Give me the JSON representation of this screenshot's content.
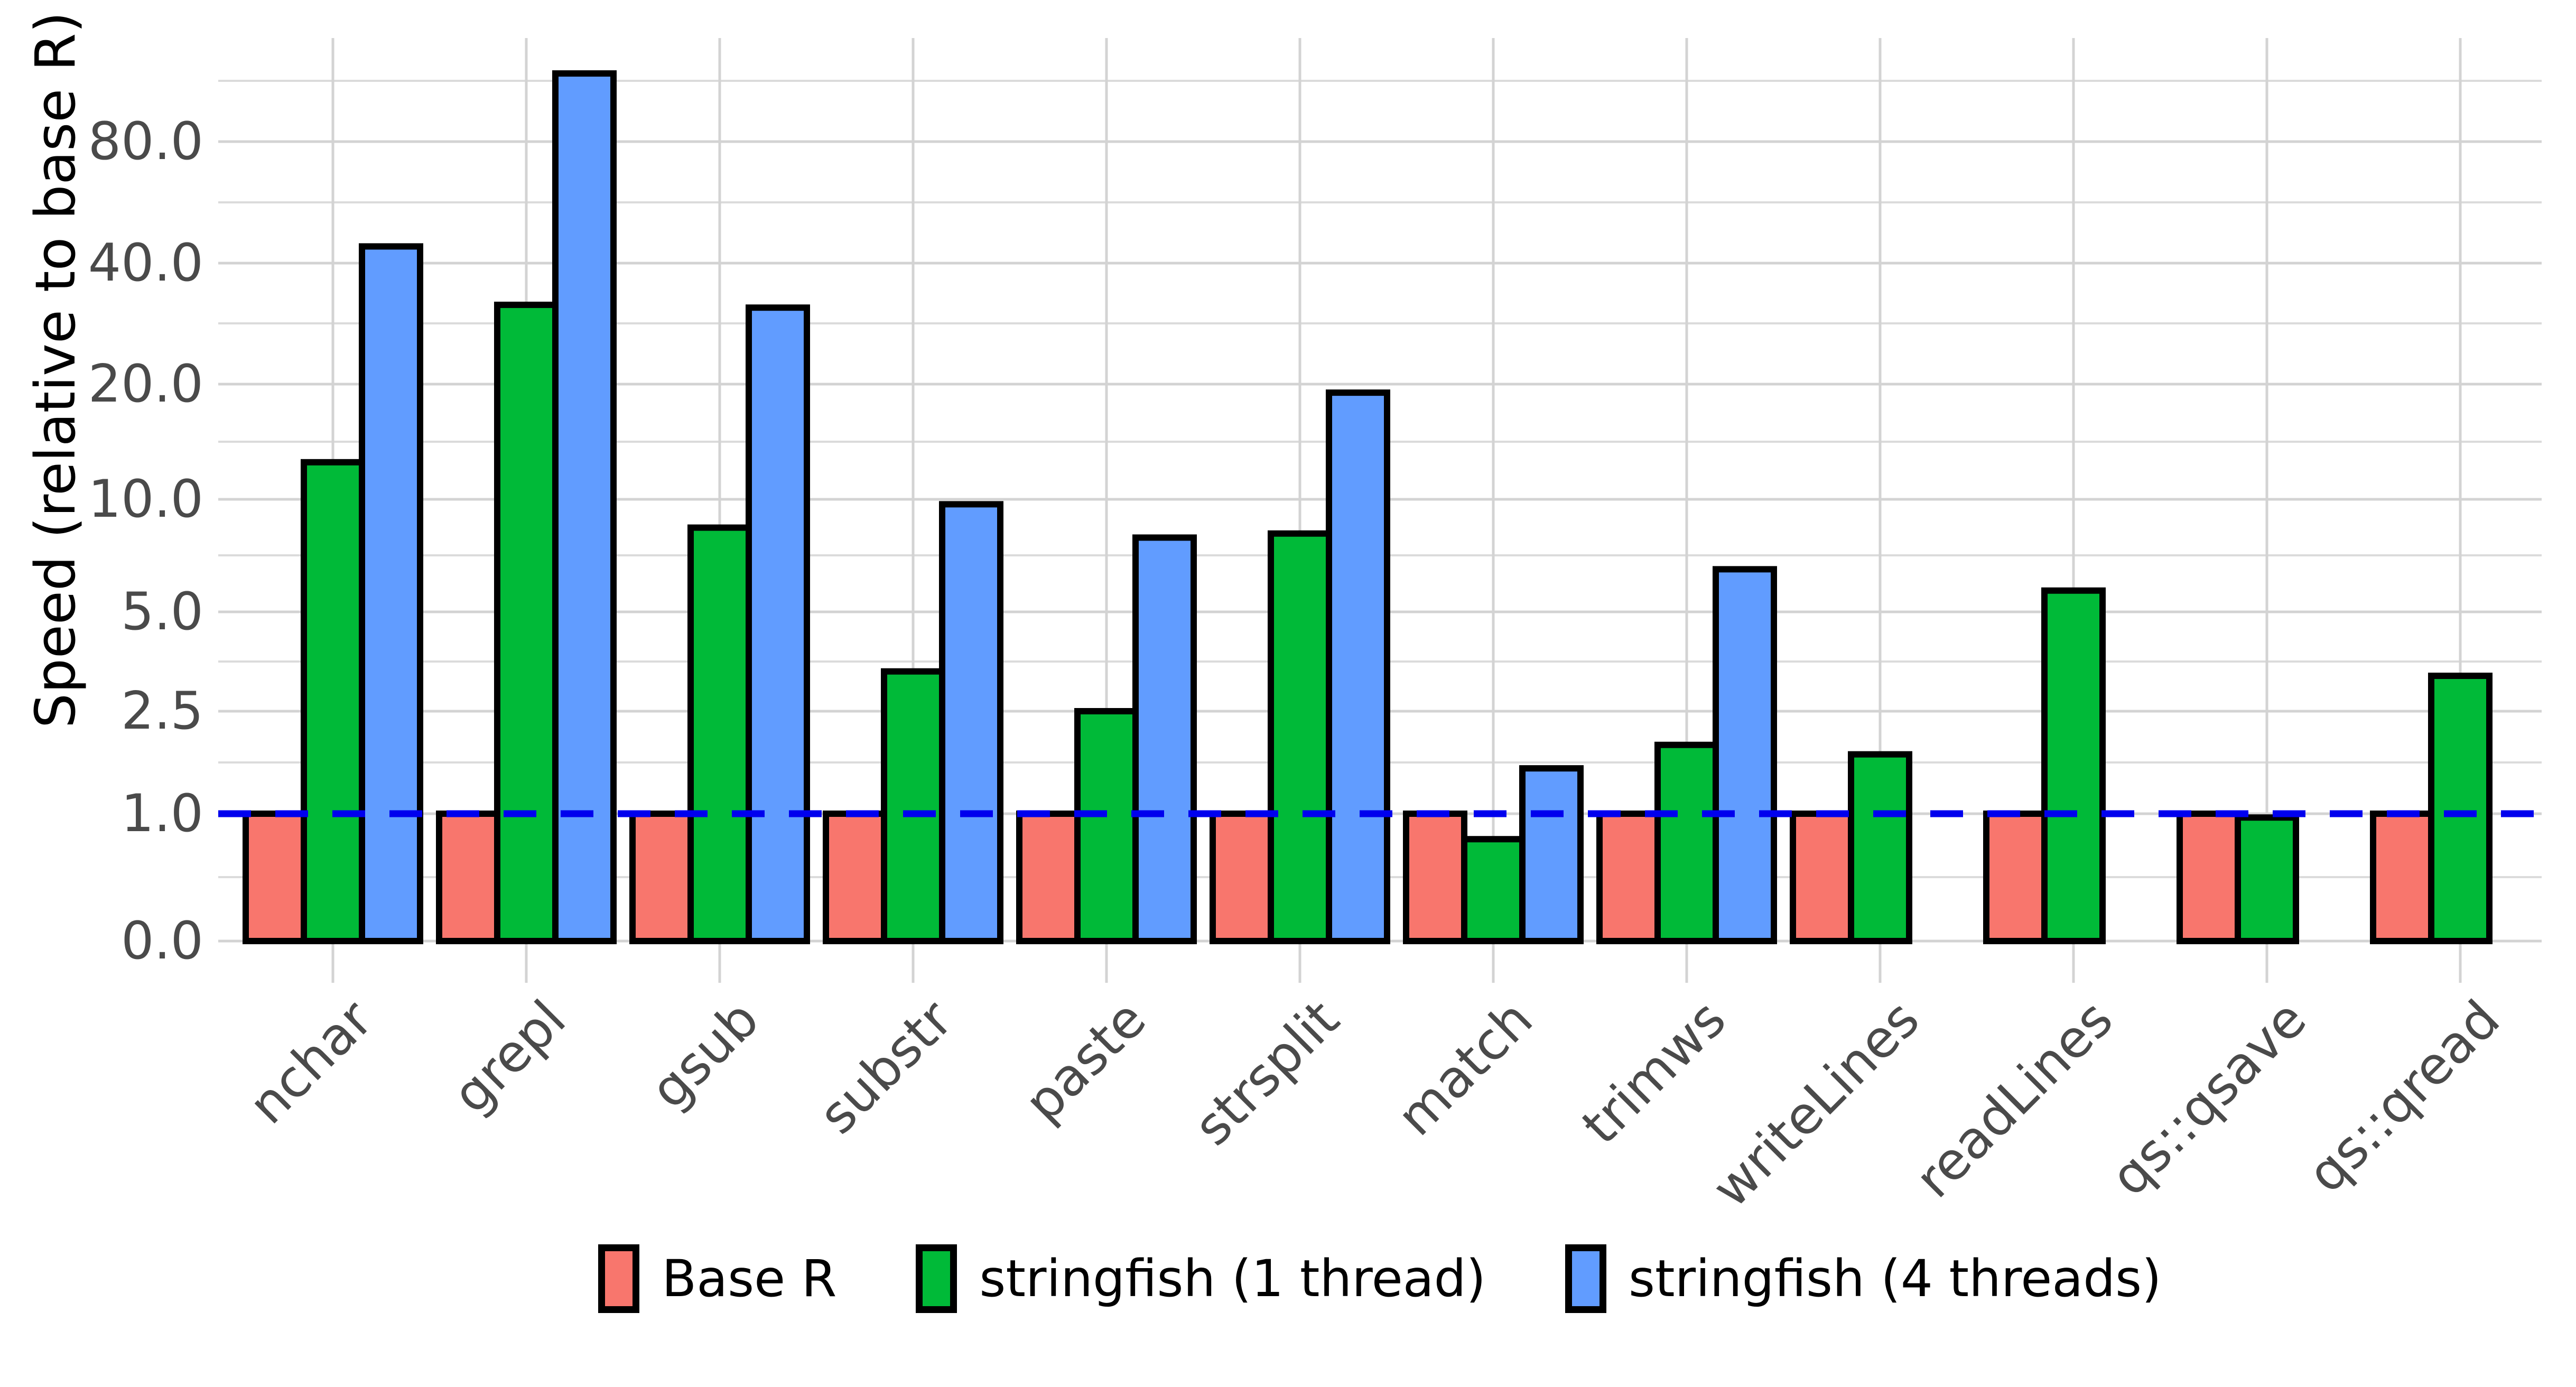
{
  "chart_data": {
    "type": "bar",
    "title": "",
    "xlabel": "",
    "ylabel": "Speed (relative to base R)",
    "categories": [
      "nchar",
      "grepl",
      "gsub",
      "substr",
      "paste",
      "strsplit",
      "match",
      "trimws",
      "writeLines",
      "readLines",
      "qs::qsave",
      "qs::qread"
    ],
    "series": [
      {
        "name": "Base R",
        "color": "#F8766D",
        "values": [
          1.0,
          1.0,
          1.0,
          1.0,
          1.0,
          1.0,
          1.0,
          1.0,
          1.0,
          1.0,
          1.0,
          1.0
        ]
      },
      {
        "name": "stringfish (1 thread)",
        "color": "#00BA38",
        "values": [
          12.5,
          31.5,
          8.4,
          3.3,
          2.5,
          8.1,
          0.8,
          1.85,
          1.7,
          5.7,
          0.97,
          3.2
        ]
      },
      {
        "name": "stringfish (4 threads)",
        "color": "#619CFF",
        "values": [
          44,
          118,
          31,
          9.7,
          7.9,
          19,
          1.5,
          6.5,
          null,
          null,
          null,
          null
        ]
      }
    ],
    "y_axis": {
      "scale": "pseudo-log",
      "major_ticks": [
        0.0,
        1.0,
        2.5,
        5.0,
        10.0,
        20.0,
        40.0,
        80.0
      ],
      "tick_labels": [
        "0.0",
        "1.0",
        "2.5",
        "5.0",
        "10.0",
        "20.0",
        "40.0",
        "80.0"
      ],
      "minor_ticks": [
        0.5,
        1.58,
        3.54,
        7.07,
        14.1,
        28.3,
        56.6,
        113.1
      ]
    },
    "reference_line": {
      "value": 1.0,
      "style": "dashed",
      "color": "#0000EE"
    },
    "legend_position": "bottom",
    "grid": true,
    "bar_outline_color": "#000000",
    "colors": {
      "background": "#FFFFFF",
      "major_grid": "#D3D3D3",
      "minor_grid": "#DBDBDB",
      "tick_text": "#4A4A4A",
      "axis_title_text": "#000000"
    }
  }
}
